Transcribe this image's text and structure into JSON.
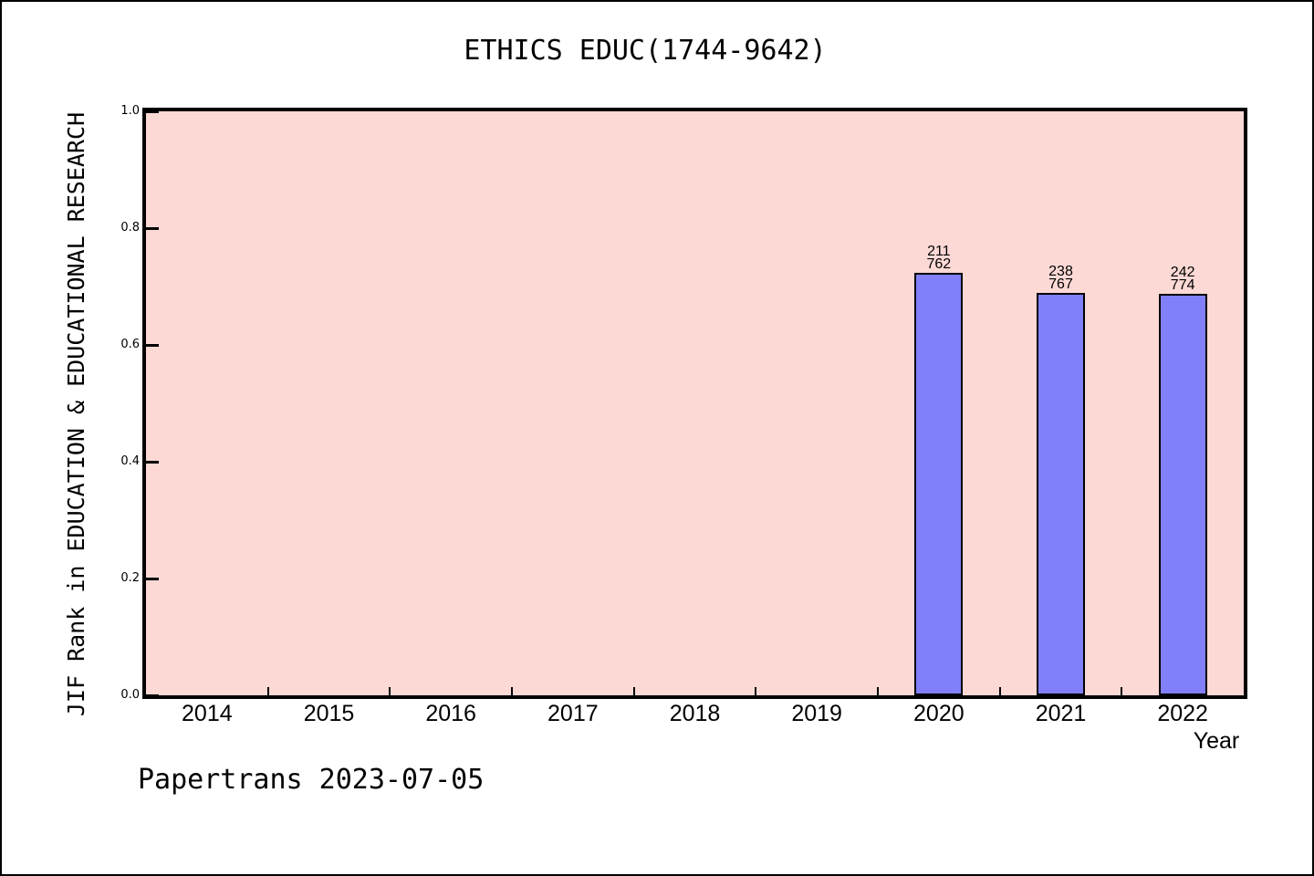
{
  "chart_data": {
    "type": "bar",
    "title": "ETHICS EDUC(1744-9642)",
    "xlabel": "Year",
    "ylabel": "JIF Rank in EDUCATION & EDUCATIONAL RESEARCH",
    "categories": [
      "2014",
      "2015",
      "2016",
      "2017",
      "2018",
      "2019",
      "2020",
      "2021",
      "2022"
    ],
    "values": [
      null,
      null,
      null,
      null,
      null,
      null,
      0.7231,
      0.6897,
      0.6873
    ],
    "bar_labels": [
      null,
      null,
      null,
      null,
      null,
      null,
      [
        "211",
        "762"
      ],
      [
        "238",
        "767"
      ],
      [
        "242",
        "774"
      ]
    ],
    "ylim": [
      0,
      1
    ],
    "yticks": [
      "0.0",
      "0.2",
      "0.4",
      "0.6",
      "0.8",
      "1.0"
    ],
    "grid": false,
    "legend": false,
    "annotation": "Papertrans 2023-07-05",
    "colors": {
      "page_bg": "#ffffff",
      "plot_bg": "#fdd9d5",
      "bar_fill": "#8180fa",
      "bar_edge": "#000000",
      "frame": "#000000",
      "text": "#000000"
    }
  }
}
